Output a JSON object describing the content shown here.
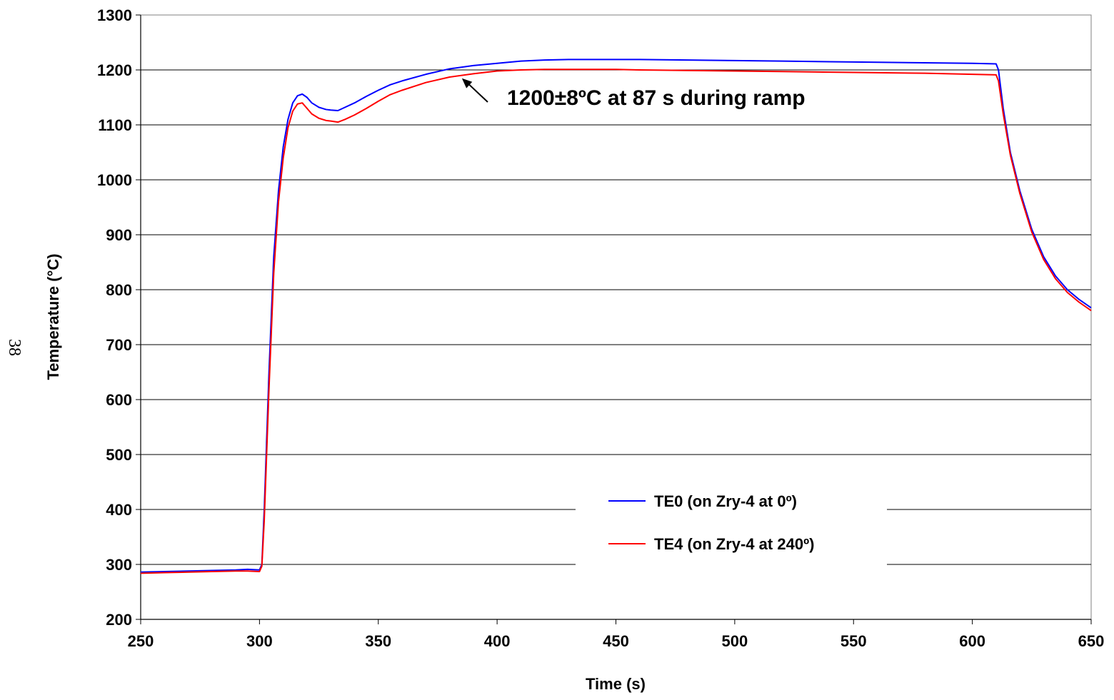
{
  "page_number": "38",
  "chart_data": {
    "type": "line",
    "title": "",
    "xlabel": "Time (s)",
    "ylabel": "Temperature (°C)",
    "xlim": [
      250,
      650
    ],
    "ylim": [
      200,
      1300
    ],
    "xticks": [
      "250",
      "300",
      "350",
      "400",
      "450",
      "500",
      "550",
      "600",
      "650"
    ],
    "yticks": [
      "200",
      "300",
      "400",
      "500",
      "600",
      "700",
      "800",
      "900",
      "1000",
      "1100",
      "1200",
      "1300"
    ],
    "grid": "horizontal",
    "legend_position": "lower-center",
    "annotation": {
      "text": "1200±8ºC at 87 s during ramp",
      "points_to_x": 384,
      "points_to_y": 1190
    },
    "series": [
      {
        "name": "TE0 (on Zry-4 at 0º)",
        "color": "#0000ff",
        "x": [
          250,
          260,
          270,
          280,
          290,
          295,
          300,
          301,
          302,
          304,
          306,
          308,
          310,
          312,
          314,
          316,
          318,
          320,
          322,
          325,
          328,
          330,
          333,
          336,
          340,
          345,
          350,
          355,
          360,
          370,
          380,
          390,
          400,
          410,
          420,
          430,
          440,
          450,
          460,
          480,
          500,
          520,
          540,
          560,
          580,
          600,
          610,
          611,
          613,
          616,
          620,
          625,
          630,
          635,
          640,
          645,
          650
        ],
        "y": [
          286,
          287,
          288,
          289,
          290,
          291,
          290,
          300,
          400,
          650,
          860,
          980,
          1060,
          1110,
          1140,
          1153,
          1156,
          1150,
          1140,
          1132,
          1128,
          1127,
          1126,
          1132,
          1140,
          1152,
          1163,
          1173,
          1180,
          1192,
          1202,
          1208,
          1212,
          1216,
          1218,
          1219,
          1219,
          1219,
          1219,
          1218,
          1217,
          1216,
          1215,
          1214,
          1213,
          1212,
          1211,
          1200,
          1130,
          1050,
          980,
          910,
          860,
          825,
          800,
          782,
          767
        ]
      },
      {
        "name": "TE4 (on Zry-4 at 240º)",
        "color": "#ff0000",
        "x": [
          250,
          260,
          270,
          280,
          290,
          295,
          300,
          301,
          302,
          304,
          306,
          308,
          310,
          312,
          314,
          316,
          318,
          320,
          322,
          325,
          328,
          330,
          333,
          336,
          340,
          345,
          350,
          355,
          360,
          370,
          380,
          390,
          400,
          410,
          420,
          430,
          440,
          450,
          460,
          480,
          500,
          520,
          540,
          560,
          580,
          600,
          610,
          611,
          613,
          616,
          620,
          625,
          630,
          635,
          640,
          645,
          650
        ],
        "y": [
          284,
          285,
          286,
          287,
          288,
          288,
          287,
          297,
          380,
          620,
          830,
          960,
          1040,
          1095,
          1125,
          1138,
          1140,
          1130,
          1120,
          1112,
          1108,
          1107,
          1105,
          1110,
          1118,
          1130,
          1143,
          1155,
          1163,
          1177,
          1187,
          1193,
          1198,
          1200,
          1201,
          1201,
          1201,
          1201,
          1200,
          1199,
          1198,
          1197,
          1196,
          1195,
          1194,
          1192,
          1191,
          1180,
          1120,
          1045,
          975,
          905,
          855,
          820,
          795,
          777,
          762
        ]
      }
    ]
  }
}
